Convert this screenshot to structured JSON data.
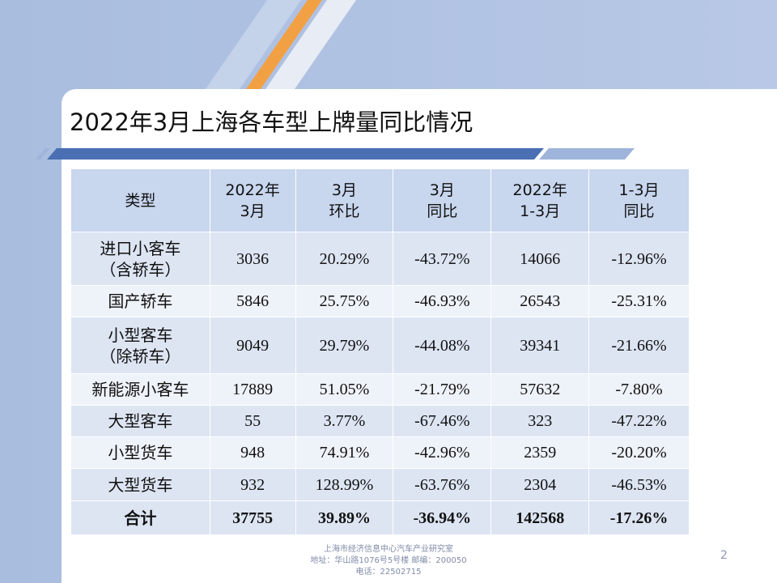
{
  "slide": {
    "title": "2022年3月上海各车型上牌量同比情况",
    "page_number": "2",
    "footer": "上海市经济信息中心汽车产业研究室\n地址：华山路1076号5号楼   邮编：200050\n电话：22502715"
  },
  "colors": {
    "background_band": "#a9bddf",
    "accent_stripe": "#f2a044",
    "header_fill": "#c8d6ee",
    "row_fill_odd": "#dde5f3",
    "row_fill_even": "#eef2f9",
    "title_rule": "#4a6fb3"
  },
  "table": {
    "headers": [
      "类型",
      "2022年\n3月",
      "3月\n环比",
      "3月\n同比",
      "2022年\n1-3月",
      "1-3月\n同比"
    ],
    "rows": [
      [
        "进口小客车\n（含轿车）",
        "3036",
        "20.29%",
        "-43.72%",
        "14066",
        "-12.96%"
      ],
      [
        "国产轿车",
        "5846",
        "25.75%",
        "-46.93%",
        "26543",
        "-25.31%"
      ],
      [
        "小型客车\n（除轿车）",
        "9049",
        "29.79%",
        "-44.08%",
        "39341",
        "-21.66%"
      ],
      [
        "新能源小客车",
        "17889",
        "51.05%",
        "-21.79%",
        "57632",
        "-7.80%"
      ],
      [
        "大型客车",
        "55",
        "3.77%",
        "-67.46%",
        "323",
        "-47.22%"
      ],
      [
        "小型货车",
        "948",
        "74.91%",
        "-42.96%",
        "2359",
        "-20.20%"
      ],
      [
        "大型货车",
        "932",
        "128.99%",
        "-63.76%",
        "2304",
        "-46.53%"
      ]
    ],
    "total": [
      "合计",
      "37755",
      "39.89%",
      "-36.94%",
      "142568",
      "-17.26%"
    ]
  }
}
